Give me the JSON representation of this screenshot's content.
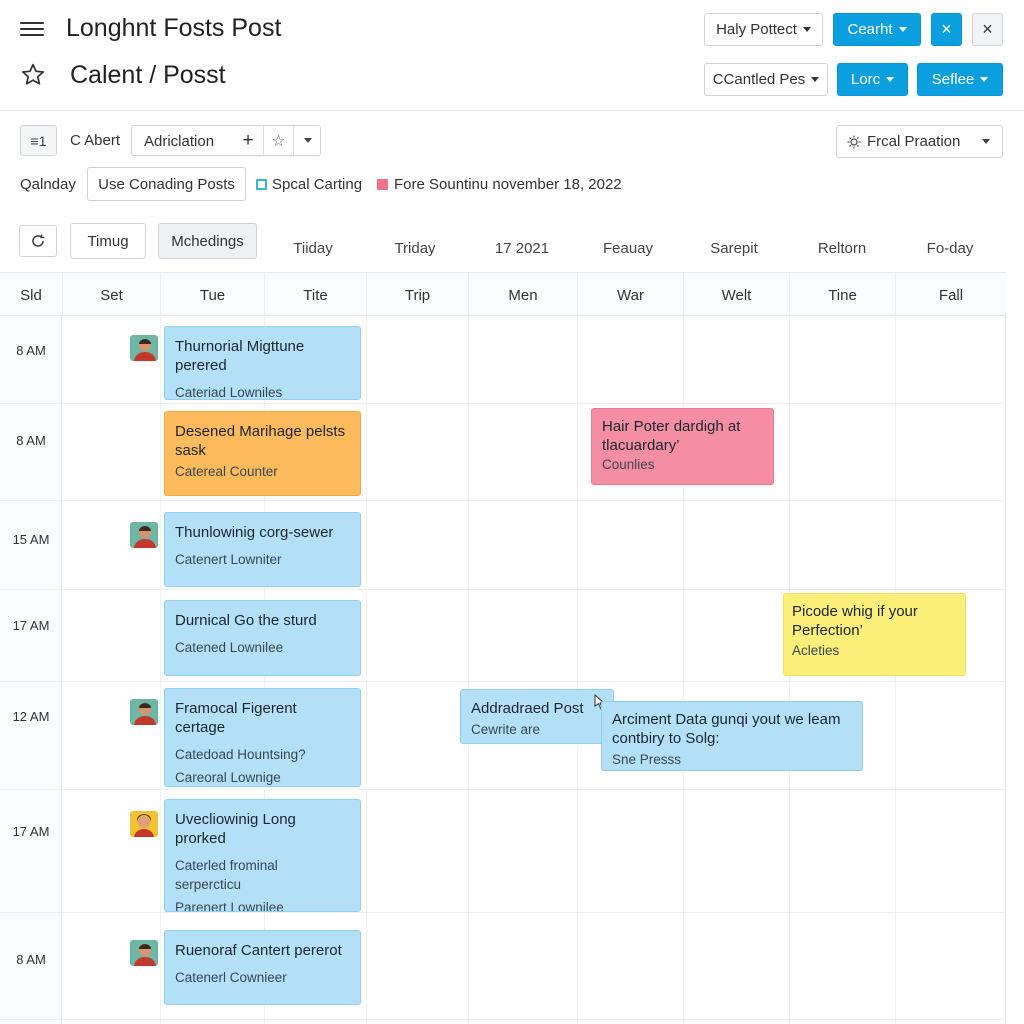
{
  "header": {
    "title": "Longhnt Fosts Post",
    "subtitle": "Calent / Posst",
    "btn_haly": "Haly Pottect",
    "btn_cearht": "Cearht",
    "btn_close_icon": "×",
    "btn_cclose": "×",
    "btn_cantled": "CCantled Pes",
    "btn_lorc": "Lorc",
    "btn_seflee": "Seflee"
  },
  "filters": {
    "row1_icon_label": "≡1",
    "row1_label": "C Abert",
    "row1_field": "Adriclation",
    "plus": "+",
    "star": "☆",
    "frcal": "Frcal Praation",
    "row2_label": "Qalnday",
    "row2_button": "Use Conading Posts",
    "legend1": "Spcal Carting",
    "legend2": "Fore Sountinu november 18, 2022"
  },
  "toolbar": {
    "timug": "Timug",
    "mchedings": "Mchedings"
  },
  "top_labels": [
    "Tiiday",
    "Triday",
    "17 2021",
    "Feauay",
    "Sarepit",
    "Reltorn",
    "Fo-day"
  ],
  "columns": [
    "Sld",
    "Set",
    "Tue",
    "Tite",
    "Trip",
    "Men",
    "War",
    "Welt",
    "Tine",
    "Fall"
  ],
  "times": [
    "8 AM",
    "8 AM",
    "15 AM",
    "17 AM",
    "12 AM",
    "17 AM",
    "8 AM"
  ],
  "events": [
    {
      "title": "Thurnorial Migttune perered",
      "sub": "Cateriad Lowniles"
    },
    {
      "title": "Desened Marihage pelsts sask",
      "sub": "Catereal Counter"
    },
    {
      "title": "Thunlowinig corg-sewer",
      "sub": "Catenert Lowniter"
    },
    {
      "title": "Durnical Go the sturd",
      "sub": "Catened Lownilee"
    },
    {
      "title": "Framocal Figerent certage",
      "sub": "Catedoad Hountsing?",
      "sub2": "Careoral Lownige"
    },
    {
      "title": "Uvecliowinig Long prorked",
      "sub": "Caterled frominal serpercticu",
      "sub2": "Parenert Lownilee"
    },
    {
      "title": "Ruenoraf Cantert pererot",
      "sub": "Catenerl Cownieer"
    },
    {
      "title": "Hair Poter dardigh at tlacuardary’",
      "sub": "Counlies"
    },
    {
      "title": "Picode whig if your Perfection’",
      "sub": "Acleties"
    },
    {
      "title": "Addradraed Post",
      "sub": "Cewrite are"
    },
    {
      "title": "Arciment Data gunqi yout we leam contbiry to Solg:",
      "sub": "Sne Presss"
    }
  ],
  "colors": {
    "primary": "#0aa0e0",
    "event_blue": "#b3e0f7",
    "event_orange": "#fdbb5e",
    "event_pink": "#f58ea2",
    "event_yellow": "#fbef7a",
    "legend_teal": "#39b6c9",
    "legend_pink": "#f0708e"
  },
  "icons": [
    "hamburger-icon",
    "star-icon",
    "close-icon",
    "refresh-icon",
    "list-icon",
    "sun-icon",
    "chevron-down-icon",
    "avatar"
  ]
}
